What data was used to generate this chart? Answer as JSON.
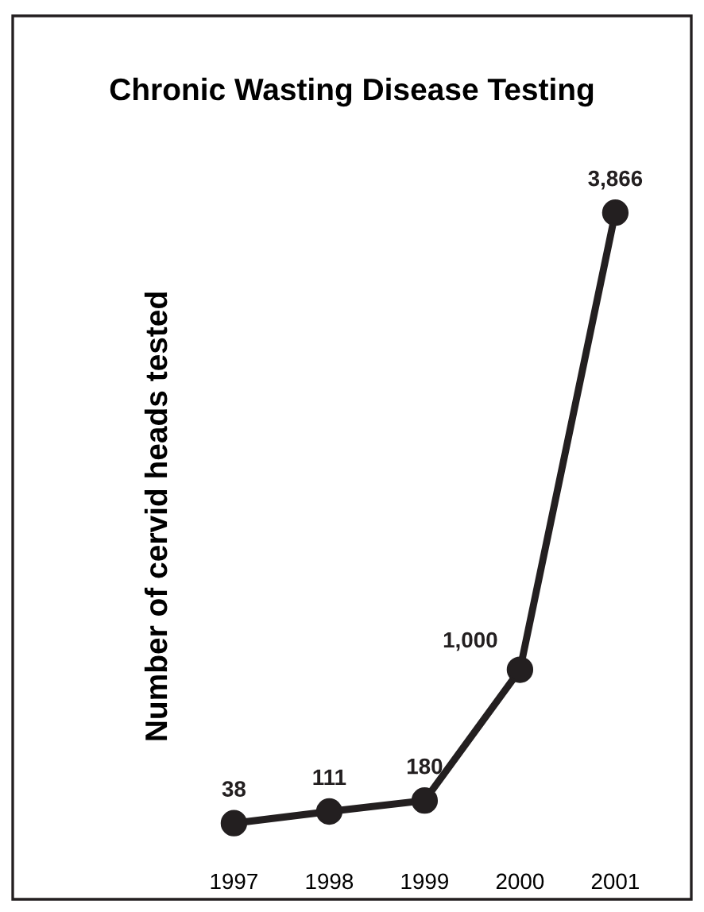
{
  "chart_data": {
    "type": "line",
    "title": "Chronic Wasting Disease Testing",
    "ylabel": "Number of cervid heads tested",
    "categories": [
      "1997",
      "1998",
      "1999",
      "2000",
      "2001"
    ],
    "values": [
      38,
      111,
      180,
      1000,
      3866
    ],
    "value_labels": [
      "38",
      "111",
      "180",
      "1,000",
      "3,866"
    ],
    "color": "#231f20",
    "marker": "circle",
    "line_style": "solid",
    "tick_labels": "x",
    "grid": false,
    "legend": false
  }
}
